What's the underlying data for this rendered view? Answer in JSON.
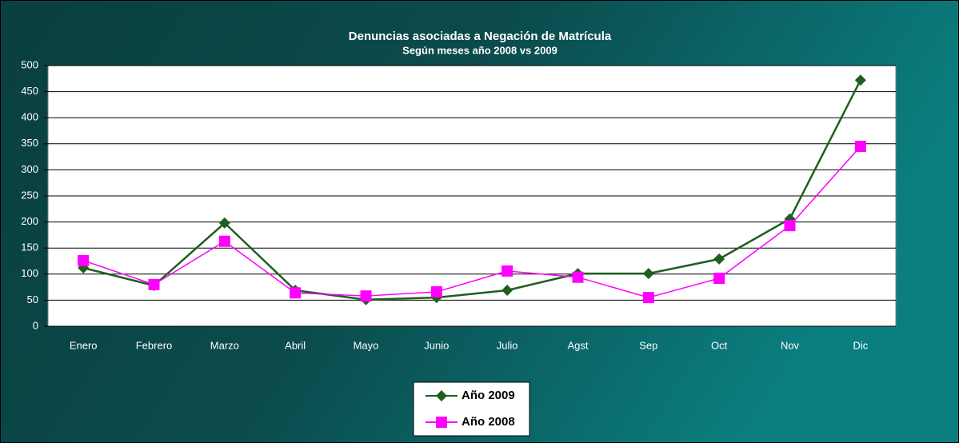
{
  "chart_data": {
    "type": "line",
    "title": "Denuncias asociadas a Negación de Matrícula",
    "subtitle": "Según meses año 2008 vs 2009",
    "categories": [
      "Enero",
      "Febrero",
      "Marzo",
      "Abril",
      "Mayo",
      "Junio",
      "Julio",
      "Agst",
      "Sep",
      "Oct",
      "Nov",
      "Dic"
    ],
    "series": [
      {
        "name": "Año 2009",
        "color": "#1f5f1f",
        "marker": "diamond",
        "values": [
          112,
          78,
          198,
          69,
          51,
          55,
          69,
          101,
          101,
          129,
          206,
          472
        ]
      },
      {
        "name": "Año 2008",
        "color": "#ff00ff",
        "marker": "square",
        "values": [
          126,
          80,
          163,
          64,
          58,
          66,
          106,
          94,
          55,
          92,
          193,
          345
        ]
      }
    ],
    "ylim": [
      0,
      500
    ],
    "yticks": [
      0,
      50,
      100,
      150,
      200,
      250,
      300,
      350,
      400,
      450,
      500
    ],
    "grid": true
  }
}
